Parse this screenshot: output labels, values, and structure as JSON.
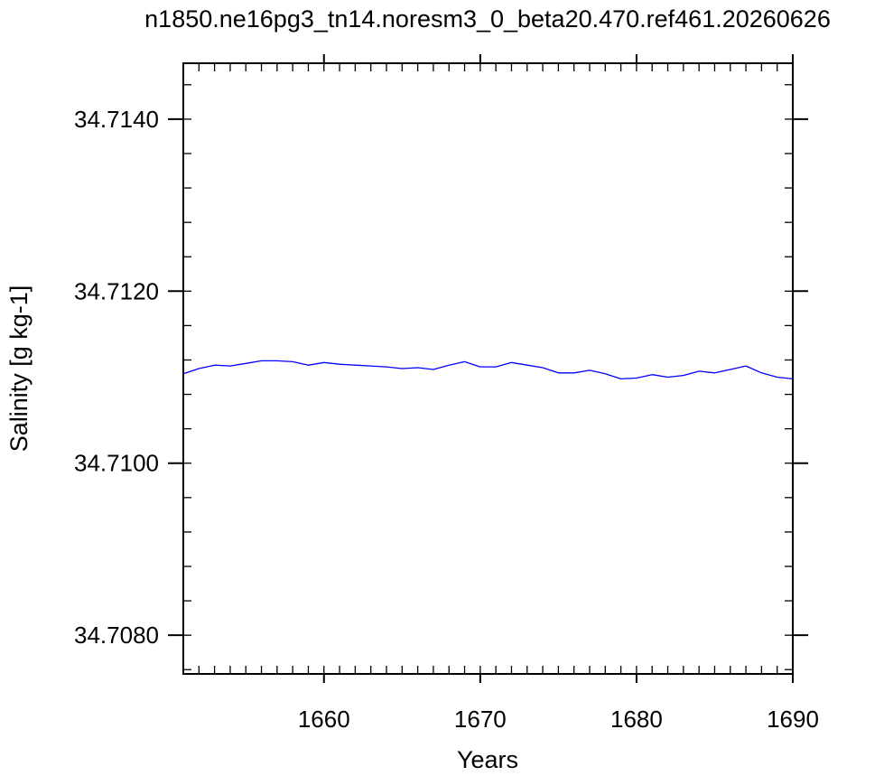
{
  "chart_data": {
    "type": "line",
    "title": "n1850.ne16pg3_tn14.noresm3_0_beta20.470.ref461.20260626",
    "xlabel": "Years",
    "ylabel": "Salinity [g kg-1]",
    "xlim": [
      1651,
      1690
    ],
    "ylim": [
      34.70755,
      34.71465
    ],
    "x_ticks": [
      1660,
      1670,
      1680,
      1690
    ],
    "x_tick_labels": [
      "1660",
      "1670",
      "1680",
      "1690"
    ],
    "y_ticks": [
      34.708,
      34.71,
      34.712,
      34.714
    ],
    "y_tick_labels": [
      "34.7080",
      "34.7100",
      "34.7120",
      "34.7140"
    ],
    "grid": false,
    "line_color": "#0000ff",
    "series": [
      {
        "x": [
          1651,
          1652,
          1653,
          1654,
          1655,
          1656,
          1657,
          1658,
          1659,
          1660,
          1661,
          1662,
          1663,
          1664,
          1665,
          1666,
          1667,
          1668,
          1669,
          1670,
          1671,
          1672,
          1673,
          1674,
          1675,
          1676,
          1677,
          1678,
          1679,
          1680,
          1681,
          1682,
          1683,
          1684,
          1685,
          1686,
          1687,
          1688,
          1689,
          1690
        ],
        "values": [
          34.71104,
          34.7111,
          34.71114,
          34.71113,
          34.71116,
          34.71119,
          34.71119,
          34.71118,
          34.71114,
          34.71117,
          34.71115,
          34.71114,
          34.71113,
          34.71112,
          34.7111,
          34.71111,
          34.71109,
          34.71114,
          34.71118,
          34.71112,
          34.71112,
          34.71117,
          34.71114,
          34.71111,
          34.71105,
          34.71105,
          34.71108,
          34.71104,
          34.71098,
          34.71099,
          34.71103,
          34.711,
          34.71102,
          34.71107,
          34.71105,
          34.71109,
          34.71113,
          34.71105,
          34.711,
          34.71098
        ]
      }
    ]
  }
}
